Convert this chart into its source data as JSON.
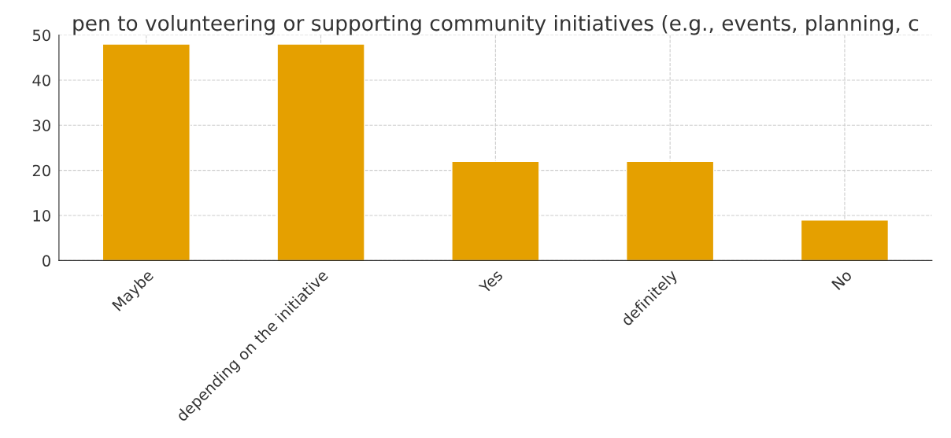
{
  "chart_data": {
    "type": "bar",
    "title": "pen to volunteering or supporting community initiatives (e.g., events, planning, c",
    "categories": [
      "Maybe",
      "depending on the initiative",
      "Yes",
      "definitely",
      "No"
    ],
    "values": [
      48,
      48,
      22,
      22,
      9
    ],
    "color": "#e5a000",
    "ylim": [
      0,
      50
    ],
    "yticks": [
      0,
      10,
      20,
      30,
      40,
      50
    ],
    "grid": true
  }
}
